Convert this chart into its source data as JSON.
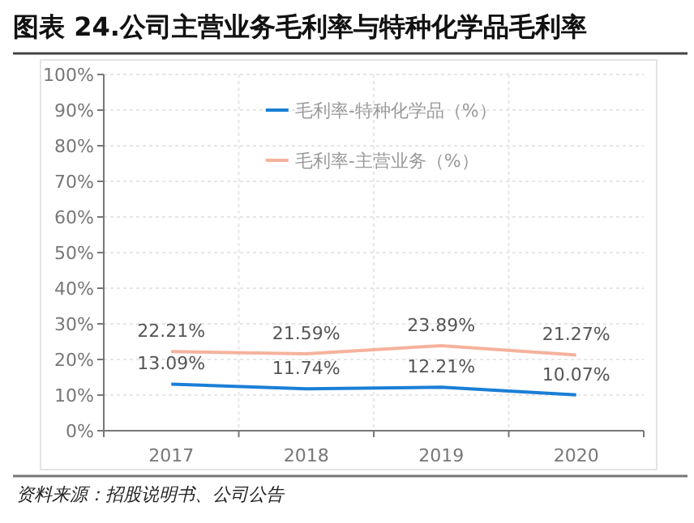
{
  "chart_data": {
    "type": "line",
    "title": "图表 24.公司主营业务毛利率与特种化学品毛利率",
    "categories": [
      "2017",
      "2018",
      "2019",
      "2020"
    ],
    "series": [
      {
        "name": "毛利率-特种化学品（%）",
        "color": "#1a7fd6",
        "values": [
          13.09,
          11.74,
          12.21,
          10.07
        ],
        "value_labels": [
          "13.09%",
          "11.74%",
          "12.21%",
          "10.07%"
        ]
      },
      {
        "name": "毛利率-主营业务（%）",
        "color": "#f5b29c",
        "values": [
          22.21,
          21.59,
          23.89,
          21.27
        ],
        "value_labels": [
          "22.21%",
          "21.59%",
          "23.89%",
          "21.27%"
        ]
      }
    ],
    "ylim": [
      0,
      100
    ],
    "yticks": [
      {
        "value": 0,
        "label": "0%"
      },
      {
        "value": 10,
        "label": "10%"
      },
      {
        "value": 20,
        "label": "20%"
      },
      {
        "value": 30,
        "label": "30%"
      },
      {
        "value": 40,
        "label": "40%"
      },
      {
        "value": 50,
        "label": "50%"
      },
      {
        "value": 60,
        "label": "60%"
      },
      {
        "value": 70,
        "label": "70%"
      },
      {
        "value": 80,
        "label": "80%"
      },
      {
        "value": 90,
        "label": "90%"
      },
      {
        "value": 100,
        "label": "100%"
      }
    ],
    "grid": true,
    "legend": "top",
    "marker": "none",
    "line_style": "solid",
    "annotations": [
      "资料来源：招股说明书、公司公告"
    ]
  }
}
